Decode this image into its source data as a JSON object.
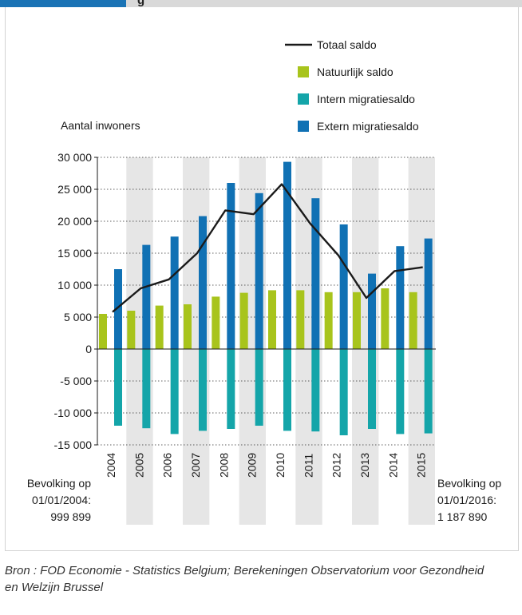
{
  "header": {
    "fragment": "g"
  },
  "chart_data": {
    "type": "bar",
    "ylabel": "Aantal inwoners",
    "ylim": [
      -15000,
      30000
    ],
    "yticks": [
      30000,
      25000,
      20000,
      15000,
      10000,
      5000,
      0,
      -5000,
      -10000,
      -15000
    ],
    "ytick_labels": [
      "30 000",
      "25 000",
      "20 000",
      "15 000",
      "10 000",
      "5 000",
      "0",
      "-5 000",
      "-10 000",
      "-15 000"
    ],
    "categories": [
      "2004",
      "2005",
      "2006",
      "2007",
      "2008",
      "2009",
      "2010",
      "2011",
      "2012",
      "2013",
      "2014",
      "2015"
    ],
    "series": [
      {
        "name": "Natuurlijk saldo",
        "type": "bar",
        "color": "#a8c41c",
        "values": [
          5500,
          6000,
          6800,
          7000,
          8200,
          8800,
          9200,
          9200,
          8900,
          8900,
          9500,
          8900
        ]
      },
      {
        "name": "Intern migratiesaldo",
        "type": "bar",
        "color": "#14a5a9",
        "values": [
          -12000,
          -12400,
          -13300,
          -12800,
          -12500,
          -12000,
          -12800,
          -12900,
          -13500,
          -12500,
          -13300,
          -13200
        ]
      },
      {
        "name": "Extern migratiesaldo",
        "type": "bar",
        "color": "#1071b4",
        "values": [
          12500,
          16300,
          17600,
          20800,
          26000,
          24400,
          29300,
          23600,
          19500,
          11800,
          16100,
          17300
        ]
      },
      {
        "name": "Totaal saldo",
        "type": "line",
        "color": "#1a1a1a",
        "values": [
          5800,
          9500,
          10900,
          15000,
          21700,
          21100,
          25800,
          19700,
          14700,
          8000,
          12200,
          12800
        ]
      }
    ],
    "legend_position": "top-right",
    "legend_order": [
      "Totaal saldo",
      "Natuurlijk saldo",
      "Intern migratiesaldo",
      "Extern migratiesaldo"
    ],
    "band_color": "#e6e6e6",
    "left_note": [
      "Bevolking op",
      "01/01/2004:",
      "999 899"
    ],
    "right_note": [
      "Bevolking op",
      "01/01/2016:",
      "1 187 890"
    ]
  },
  "source": "Bron : FOD Economie - Statistics Belgium; Berekeningen Observatorium voor Gezondheid en Welzijn Brussel"
}
